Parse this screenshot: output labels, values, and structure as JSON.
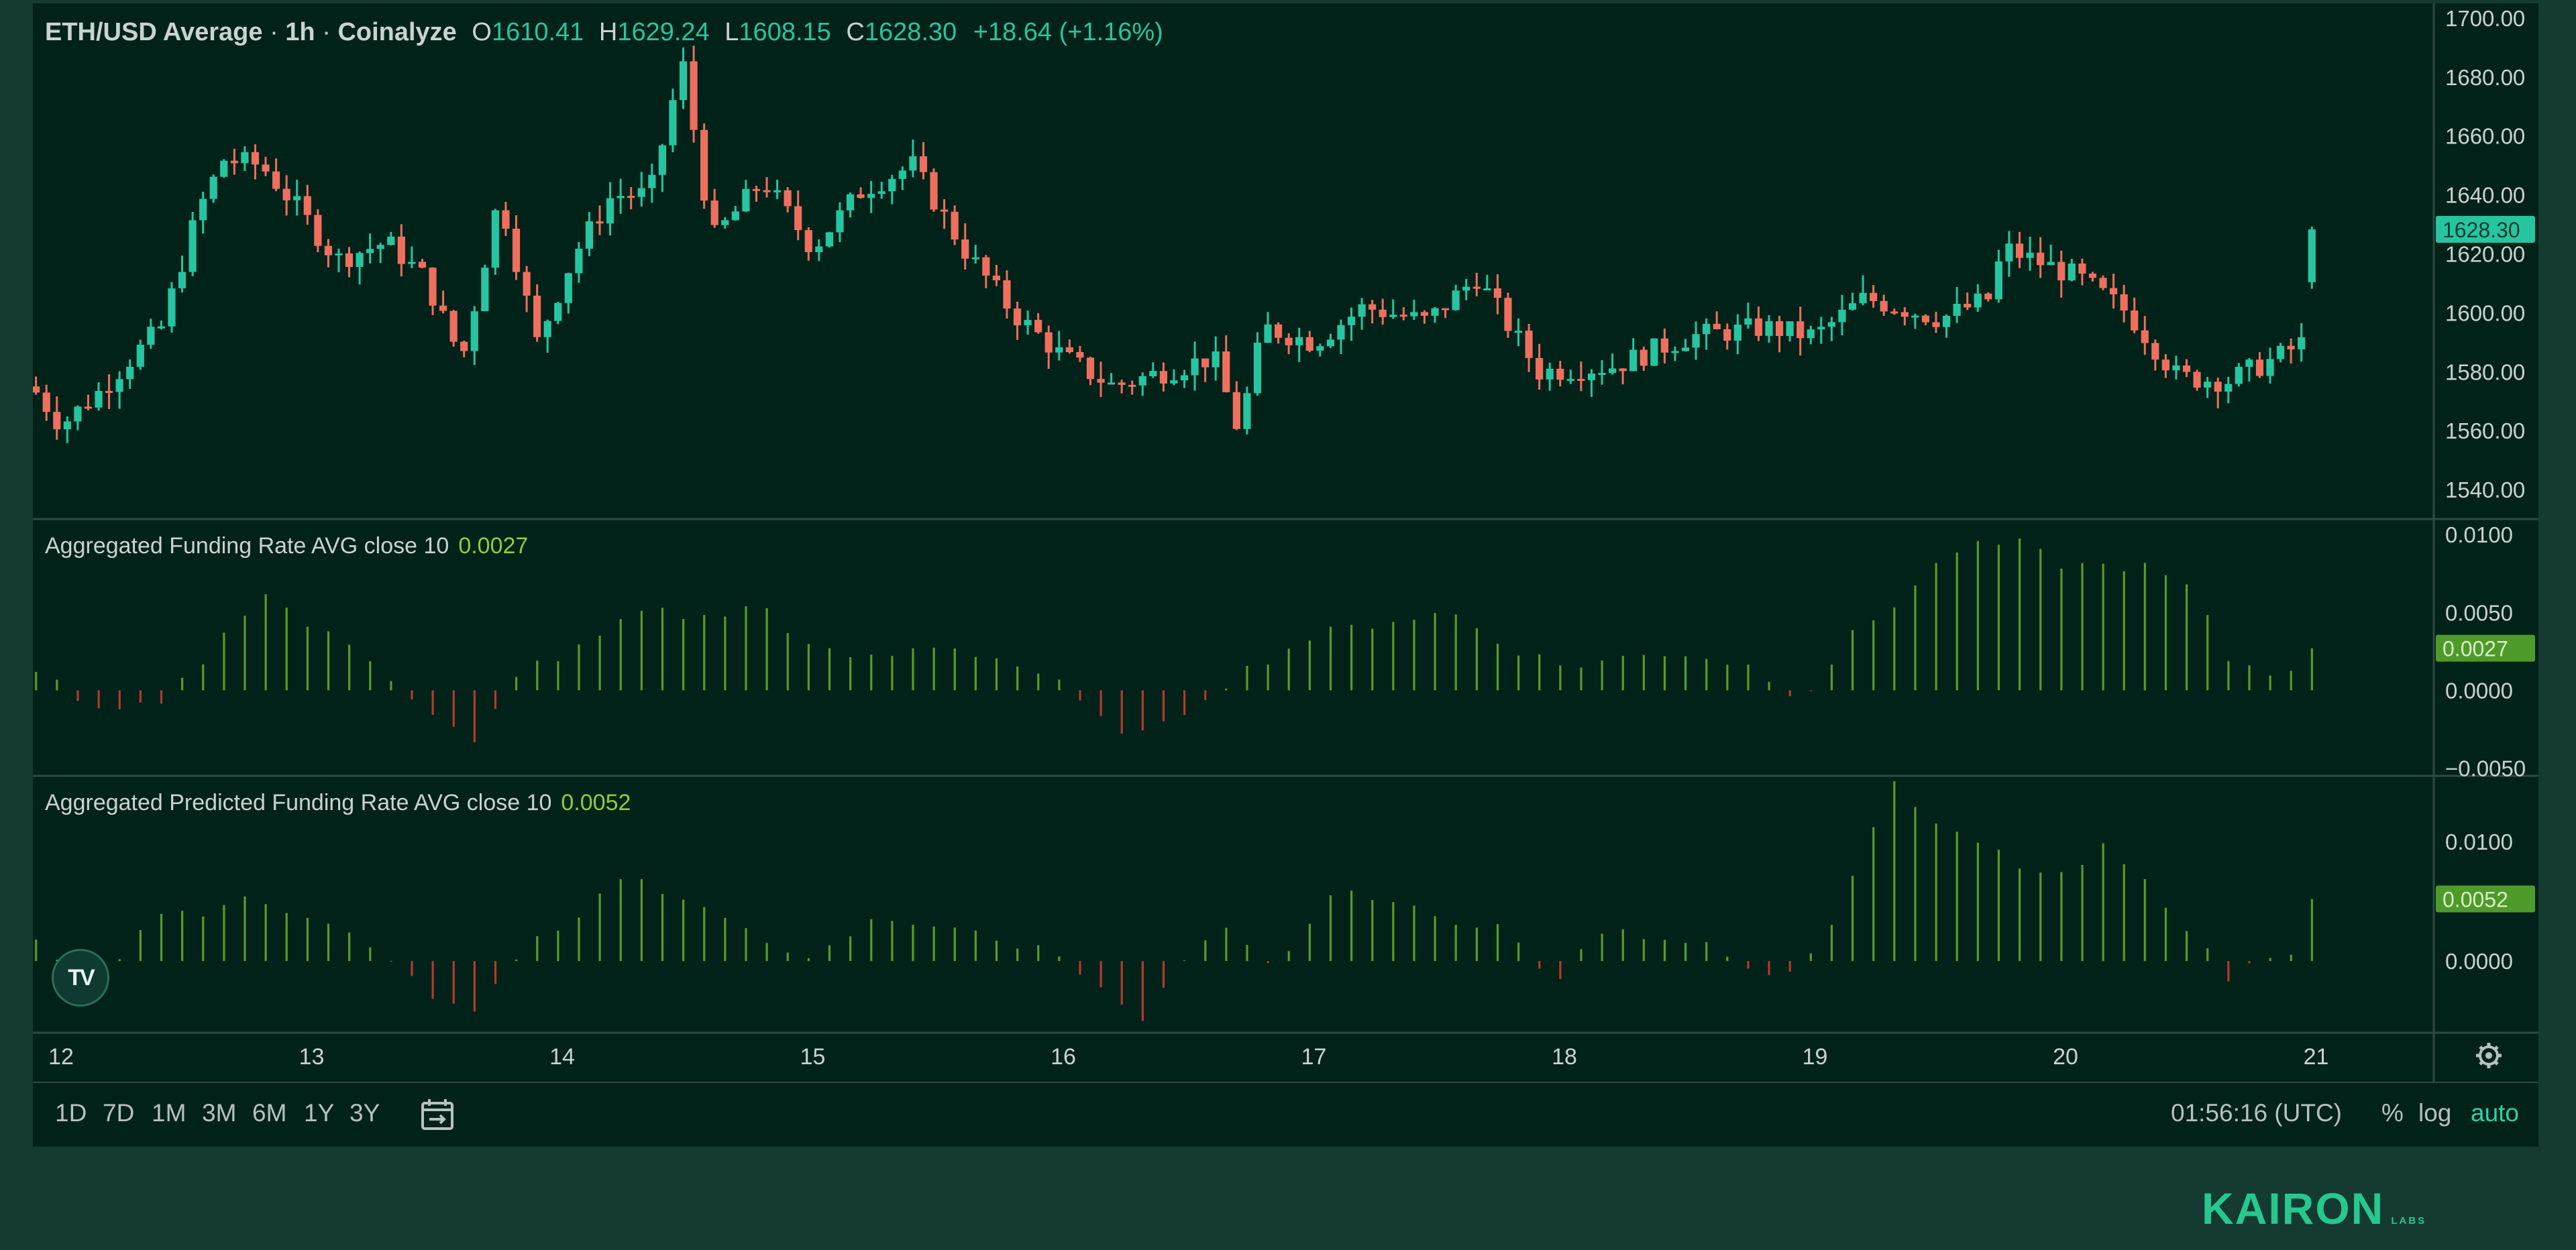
{
  "chart": {
    "symbol": "ETH/USD Average",
    "separator": "·",
    "interval": "1h",
    "source": "Coinalyze",
    "ohlc": {
      "open_label": "O",
      "open": "1610.41",
      "high_label": "H",
      "high": "1629.24",
      "low_label": "L",
      "low": "1608.15",
      "close_label": "C",
      "close": "1628.30",
      "change": "+18.64 (+1.16%)"
    },
    "current_price_tag": "1628.30"
  },
  "funding": {
    "title": "Aggregated Funding Rate AVG close 10",
    "value": "0.0027"
  },
  "predicted": {
    "title": "Aggregated Predicted Funding Rate AVG close 10",
    "value": "0.0052"
  },
  "toolbar": {
    "ranges": [
      "1D",
      "7D",
      "1M",
      "3M",
      "6M",
      "1Y",
      "3Y"
    ],
    "time": "01:56:16 (UTC)",
    "percent": "%",
    "log": "log",
    "auto": "auto"
  },
  "logo": {
    "tv": "TV"
  },
  "brand": {
    "name": "KAIRON",
    "sub": "LABS"
  },
  "colors": {
    "up": "#26c5a0",
    "down": "#ef6f5e",
    "hist_up": "#5a9a2a",
    "hist_down": "#b23a2e",
    "background": "#012219",
    "frame": "#143a32",
    "accent": "#2ad3a5"
  },
  "chart_data": [
    {
      "type": "candlestick",
      "title": "ETH/USD Average · 1h · Coinalyze",
      "x_ticks": [
        "12",
        "13",
        "14",
        "15",
        "16",
        "17",
        "18",
        "19",
        "20",
        "21"
      ],
      "ylim": [
        1530,
        1705
      ],
      "y_ticks": [
        "1700.00",
        "1680.00",
        "1660.00",
        "1640.00",
        "1620.00",
        "1600.00",
        "1580.00",
        "1560.00",
        "1540.00"
      ],
      "x_start_day": 11.9,
      "x_end_day": 21.0,
      "anchors_day_close": [
        [
          11.9,
          1573
        ],
        [
          12.0,
          1562
        ],
        [
          12.15,
          1573
        ],
        [
          12.25,
          1582
        ],
        [
          12.4,
          1595
        ],
        [
          12.55,
          1635
        ],
        [
          12.65,
          1652
        ],
        [
          12.8,
          1650
        ],
        [
          12.95,
          1635
        ],
        [
          13.1,
          1618
        ],
        [
          13.3,
          1624
        ],
        [
          13.45,
          1612
        ],
        [
          13.6,
          1584
        ],
        [
          13.75,
          1640
        ],
        [
          13.9,
          1590
        ],
        [
          14.05,
          1620
        ],
        [
          14.2,
          1640
        ],
        [
          14.35,
          1640
        ],
        [
          14.48,
          1685
        ],
        [
          14.6,
          1625
        ],
        [
          14.8,
          1645
        ],
        [
          15.0,
          1622
        ],
        [
          15.2,
          1642
        ],
        [
          15.4,
          1650
        ],
        [
          15.6,
          1622
        ],
        [
          15.8,
          1600
        ],
        [
          16.0,
          1585
        ],
        [
          16.2,
          1575
        ],
        [
          16.4,
          1580
        ],
        [
          16.6,
          1585
        ],
        [
          16.7,
          1560
        ],
        [
          16.8,
          1595
        ],
        [
          17.0,
          1590
        ],
        [
          17.2,
          1602
        ],
        [
          17.45,
          1597
        ],
        [
          17.65,
          1612
        ],
        [
          17.9,
          1580
        ],
        [
          18.2,
          1582
        ],
        [
          18.5,
          1592
        ],
        [
          18.8,
          1595
        ],
        [
          19.0,
          1592
        ],
        [
          19.2,
          1605
        ],
        [
          19.5,
          1598
        ],
        [
          19.7,
          1605
        ],
        [
          19.75,
          1622
        ],
        [
          20.05,
          1612
        ],
        [
          20.25,
          1600
        ],
        [
          20.45,
          1578
        ],
        [
          20.65,
          1577
        ],
        [
          20.85,
          1585
        ],
        [
          20.95,
          1590
        ],
        [
          21.0,
          1628.3
        ]
      ],
      "last_candle": {
        "open": 1610.41,
        "high": 1629.24,
        "low": 1608.15,
        "close": 1628.3
      }
    },
    {
      "type": "bar",
      "title": "Aggregated Funding Rate AVG close 10",
      "ylim": [
        -0.0055,
        0.011
      ],
      "y_ticks": [
        "0.0100",
        "0.0050",
        "0.0000",
        "−0.0050"
      ],
      "last_value": 0.0027,
      "anchors_day_value": [
        [
          11.9,
          0.0015
        ],
        [
          12.15,
          -0.0015
        ],
        [
          12.4,
          -0.001
        ],
        [
          12.6,
          0.0025
        ],
        [
          12.8,
          0.0065
        ],
        [
          13.0,
          0.004
        ],
        [
          13.2,
          0.0025
        ],
        [
          13.45,
          -0.001
        ],
        [
          13.65,
          -0.0035
        ],
        [
          13.85,
          0.0015
        ],
        [
          14.05,
          0.0025
        ],
        [
          14.35,
          0.0055
        ],
        [
          14.55,
          0.0045
        ],
        [
          14.8,
          0.0055
        ],
        [
          15.0,
          0.0025
        ],
        [
          15.25,
          0.002
        ],
        [
          15.5,
          0.003
        ],
        [
          15.75,
          0.002
        ],
        [
          15.95,
          0.0008
        ],
        [
          16.15,
          -0.002
        ],
        [
          16.35,
          -0.003
        ],
        [
          16.55,
          -0.0005
        ],
        [
          16.75,
          0.0015
        ],
        [
          17.0,
          0.0035
        ],
        [
          17.3,
          0.0045
        ],
        [
          17.55,
          0.005
        ],
        [
          17.75,
          0.003
        ],
        [
          18.0,
          0.0015
        ],
        [
          18.2,
          0.002
        ],
        [
          18.45,
          0.0025
        ],
        [
          18.75,
          0.0015
        ],
        [
          18.95,
          -0.0005
        ],
        [
          19.15,
          0.0035
        ],
        [
          19.35,
          0.006
        ],
        [
          19.55,
          0.009
        ],
        [
          19.8,
          0.0095
        ],
        [
          20.0,
          0.008
        ],
        [
          20.3,
          0.008
        ],
        [
          20.5,
          0.0065
        ],
        [
          20.65,
          0.002
        ],
        [
          20.85,
          0.001
        ],
        [
          21.0,
          0.0027
        ]
      ]
    },
    {
      "type": "bar",
      "title": "Aggregated Predicted Funding Rate AVG close 10",
      "ylim": [
        -0.006,
        0.0155
      ],
      "y_ticks": [
        "0.0100",
        "0.0000"
      ],
      "last_value": 0.0052,
      "anchors_day_value": [
        [
          11.9,
          0.0015
        ],
        [
          12.15,
          -0.002
        ],
        [
          12.35,
          0.0035
        ],
        [
          12.55,
          0.004
        ],
        [
          12.75,
          0.0055
        ],
        [
          13.0,
          0.0035
        ],
        [
          13.2,
          0.002
        ],
        [
          13.45,
          -0.0025
        ],
        [
          13.65,
          -0.0045
        ],
        [
          13.85,
          0.0015
        ],
        [
          14.05,
          0.0035
        ],
        [
          14.25,
          0.0075
        ],
        [
          14.45,
          0.005
        ],
        [
          14.75,
          0.003
        ],
        [
          14.95,
          -0.0005
        ],
        [
          15.25,
          0.0035
        ],
        [
          15.55,
          0.003
        ],
        [
          15.75,
          0.0015
        ],
        [
          15.95,
          0.001
        ],
        [
          16.15,
          -0.002
        ],
        [
          16.3,
          -0.0055
        ],
        [
          16.5,
          0.0005
        ],
        [
          16.65,
          0.0025
        ],
        [
          16.85,
          -0.001
        ],
        [
          17.05,
          0.0055
        ],
        [
          17.25,
          0.0055
        ],
        [
          17.5,
          0.0035
        ],
        [
          17.75,
          0.003
        ],
        [
          17.95,
          -0.002
        ],
        [
          18.15,
          0.0025
        ],
        [
          18.4,
          0.002
        ],
        [
          18.6,
          0.0015
        ],
        [
          18.8,
          -0.0015
        ],
        [
          19.0,
          0.0005
        ],
        [
          19.15,
          0.007
        ],
        [
          19.3,
          0.015
        ],
        [
          19.5,
          0.011
        ],
        [
          19.7,
          0.0095
        ],
        [
          19.85,
          0.0075
        ],
        [
          20.0,
          0.007
        ],
        [
          20.15,
          0.0095
        ],
        [
          20.35,
          0.006
        ],
        [
          20.5,
          0.0025
        ],
        [
          20.65,
          -0.0015
        ],
        [
          20.8,
          0.0005
        ],
        [
          20.92,
          0.001
        ],
        [
          21.0,
          0.0052
        ]
      ]
    }
  ]
}
